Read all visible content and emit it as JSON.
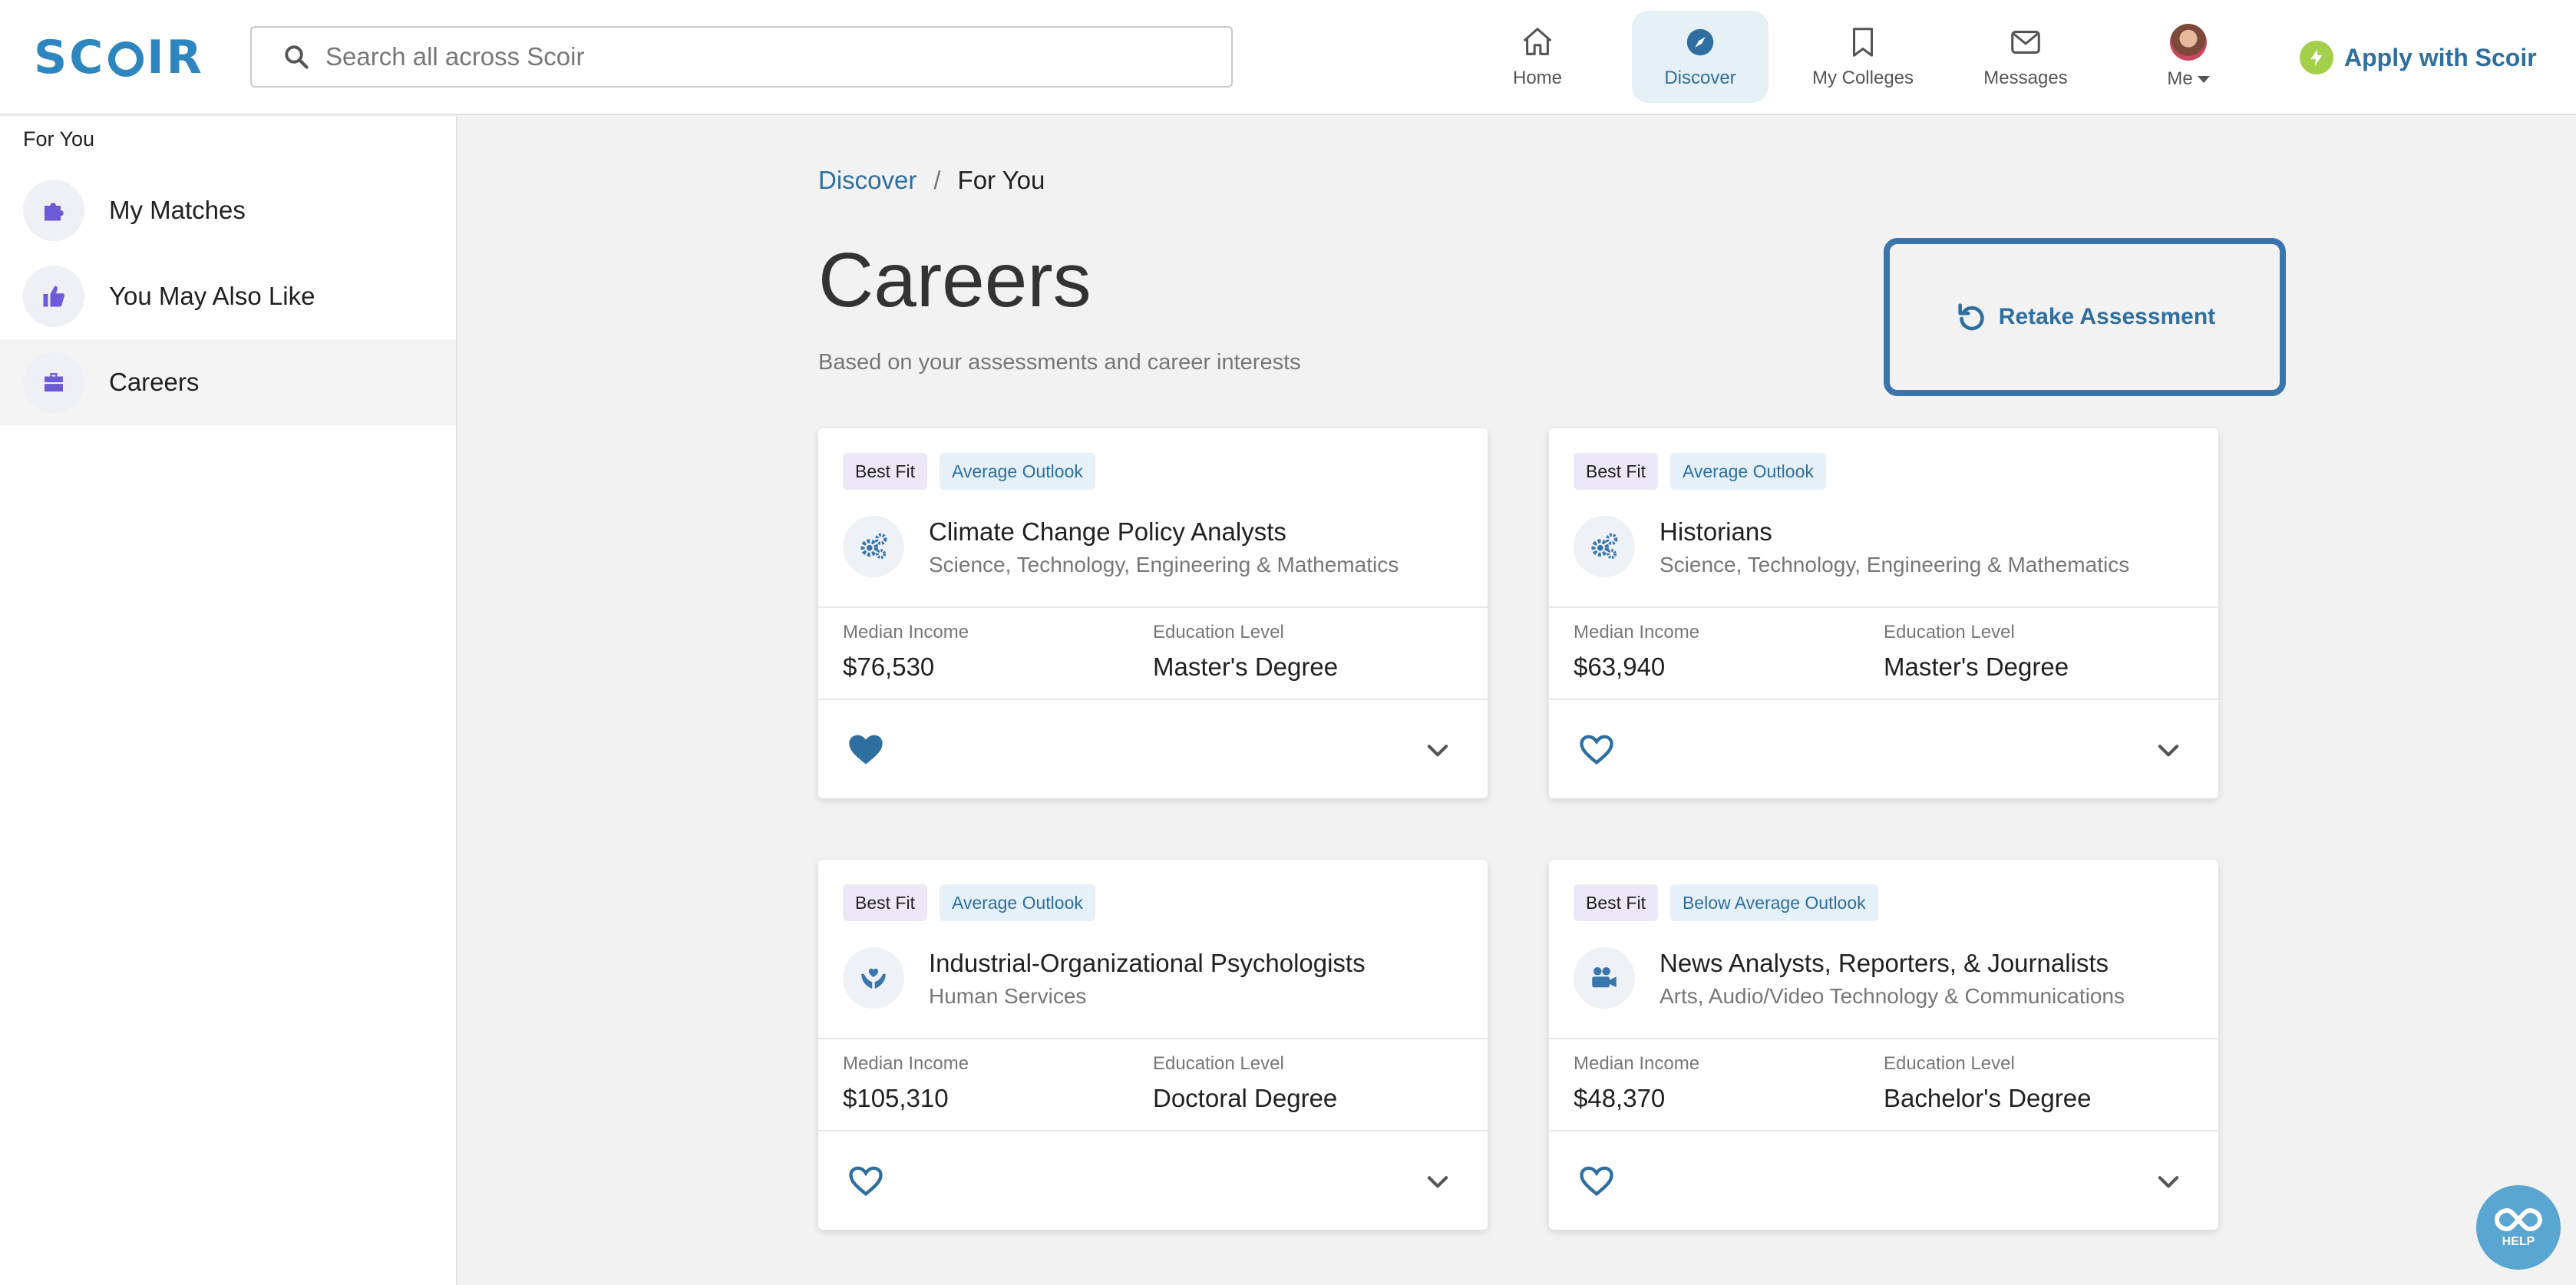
{
  "app": {
    "logo_text": "SCOIR",
    "brand_color": "#2e86c1",
    "accent_color": "#2e6fa0"
  },
  "header": {
    "search": {
      "placeholder": "Search all across Scoir",
      "value": "",
      "icon": "search-icon"
    },
    "nav": [
      {
        "label": "Home",
        "icon": "home-icon",
        "active": false
      },
      {
        "label": "Discover",
        "icon": "compass-icon",
        "active": true
      },
      {
        "label": "My Colleges",
        "icon": "bookmark-icon",
        "active": false
      },
      {
        "label": "Messages",
        "icon": "mail-icon",
        "active": false
      },
      {
        "label": "Me",
        "icon": "avatar",
        "active": false
      }
    ],
    "apply_label": "Apply with Scoir"
  },
  "sidebar": {
    "heading": "For You",
    "items": [
      {
        "label": "My Matches",
        "icon": "puzzle-icon",
        "active": false
      },
      {
        "label": "You May Also Like",
        "icon": "thumbs-up-icon",
        "active": false
      },
      {
        "label": "Careers",
        "icon": "briefcase-icon",
        "active": true
      }
    ]
  },
  "breadcrumb": {
    "parent": "Discover",
    "separator": "/",
    "current": "For You"
  },
  "page": {
    "title": "Careers",
    "subtitle": "Based on your assessments and career interests",
    "retake_label": "Retake Assessment"
  },
  "cards": [
    {
      "fit": "Best Fit",
      "outlook": "Average Outlook",
      "name": "Climate Change Policy Analysts",
      "category": "Science, Technology, Engineering & Mathematics",
      "icon": "gears-icon",
      "income_label": "Median Income",
      "income": "$76,530",
      "education_label": "Education Level",
      "education": "Master's Degree",
      "favorited": true
    },
    {
      "fit": "Best Fit",
      "outlook": "Average Outlook",
      "name": "Historians",
      "category": "Science, Technology, Engineering & Mathematics",
      "icon": "gears-icon",
      "income_label": "Median Income",
      "income": "$63,940",
      "education_label": "Education Level",
      "education": "Master's Degree",
      "favorited": false
    },
    {
      "fit": "Best Fit",
      "outlook": "Average Outlook",
      "name": "Industrial-Organizational Psychologists",
      "category": "Human Services",
      "icon": "hands-heart-icon",
      "income_label": "Median Income",
      "income": "$105,310",
      "education_label": "Education Level",
      "education": "Doctoral Degree",
      "favorited": false
    },
    {
      "fit": "Best Fit",
      "outlook": "Below Average Outlook",
      "name": "News Analysts, Reporters, & Journalists",
      "category": "Arts, Audio/Video Technology & Communications",
      "icon": "video-camera-icon",
      "income_label": "Median Income",
      "income": "$48,370",
      "education_label": "Education Level",
      "education": "Bachelor's Degree",
      "favorited": false
    }
  ],
  "help": {
    "label": "HELP",
    "icon": "infinity-icon"
  }
}
